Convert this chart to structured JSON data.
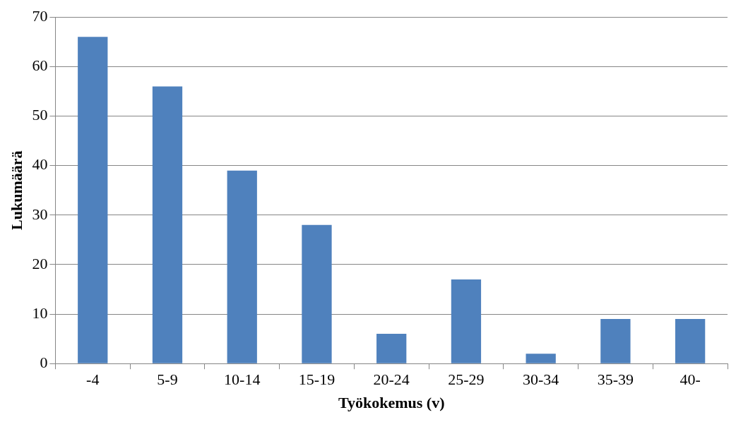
{
  "chart_data": {
    "type": "bar",
    "xlabel": "Työkokemus (v)",
    "ylabel": "Lukumäärä",
    "categories": [
      "-4",
      "5-9",
      "10-14",
      "15-19",
      "20-24",
      "25-29",
      "30-34",
      "35-39",
      "40-"
    ],
    "values": [
      66,
      56,
      39,
      28,
      6,
      17,
      2,
      9,
      9
    ],
    "color": "#4f81bd",
    "ylim": [
      0,
      70
    ],
    "yticks": [
      0,
      10,
      20,
      30,
      40,
      50,
      60,
      70
    ],
    "grid": "y",
    "legend": false
  }
}
